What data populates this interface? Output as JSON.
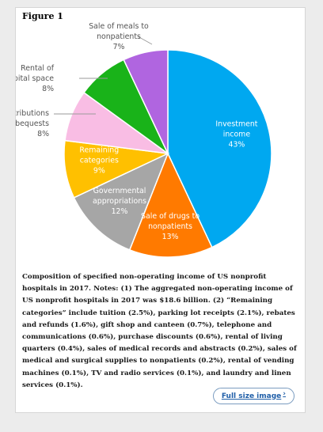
{
  "figure_label": "Figure 1",
  "chart_data": {
    "type": "pie",
    "title": "",
    "slices": [
      {
        "label_lines": [
          "Investment",
          "income"
        ],
        "value": 43,
        "value_label": "43%",
        "color": "#00a8f0",
        "label_color": "#ffffff"
      },
      {
        "label_lines": [
          "Sale of drugs to",
          "nonpatients"
        ],
        "value": 13,
        "value_label": "13%",
        "color": "#ff7a00",
        "label_color": "#ffffff"
      },
      {
        "label_lines": [
          "Governmental",
          "appropriations"
        ],
        "value": 12,
        "value_label": "12%",
        "color": "#a6a6a6",
        "label_color": "#ffffff"
      },
      {
        "label_lines": [
          "Remaining",
          "categories"
        ],
        "value": 9,
        "value_label": "9%",
        "color": "#ffc000",
        "label_color": "#ffffff"
      },
      {
        "label_lines": [
          "Contributions",
          "and bequests"
        ],
        "value": 8,
        "value_label": "8%",
        "color": "#f9bde4",
        "label_color": "#555555"
      },
      {
        "label_lines": [
          "Rental of",
          "hospital space"
        ],
        "value": 8,
        "value_label": "8%",
        "color": "#19b319",
        "label_color": "#555555"
      },
      {
        "label_lines": [
          "Sale of meals to",
          "nonpatients"
        ],
        "value": 7,
        "value_label": "7%",
        "color": "#b065e0",
        "label_color": "#555555"
      }
    ]
  },
  "caption": "Composition of specified non-operating income of US nonprofit hospitals in 2017. Notes: (1) The aggregated non-operating income of US nonprofit hospitals in 2017 was $18.6 billion. (2) “Remaining categories” include tuition (2.5%), parking lot receipts (2.1%), rebates and refunds (1.6%), gift shop and canteen (0.7%), telephone and communications (0.6%), purchase discounts (0.6%), rental of living quarters (0.4%), sales of medical records and abstracts (0.2%), sales of medical and surgical supplies to nonpatients (0.2%), rental of vending machines (0.1%), TV and radio services (0.1%), and laundry and linen services (0.1%).",
  "full_size_link": "Full size image",
  "full_size_chevron": "›"
}
